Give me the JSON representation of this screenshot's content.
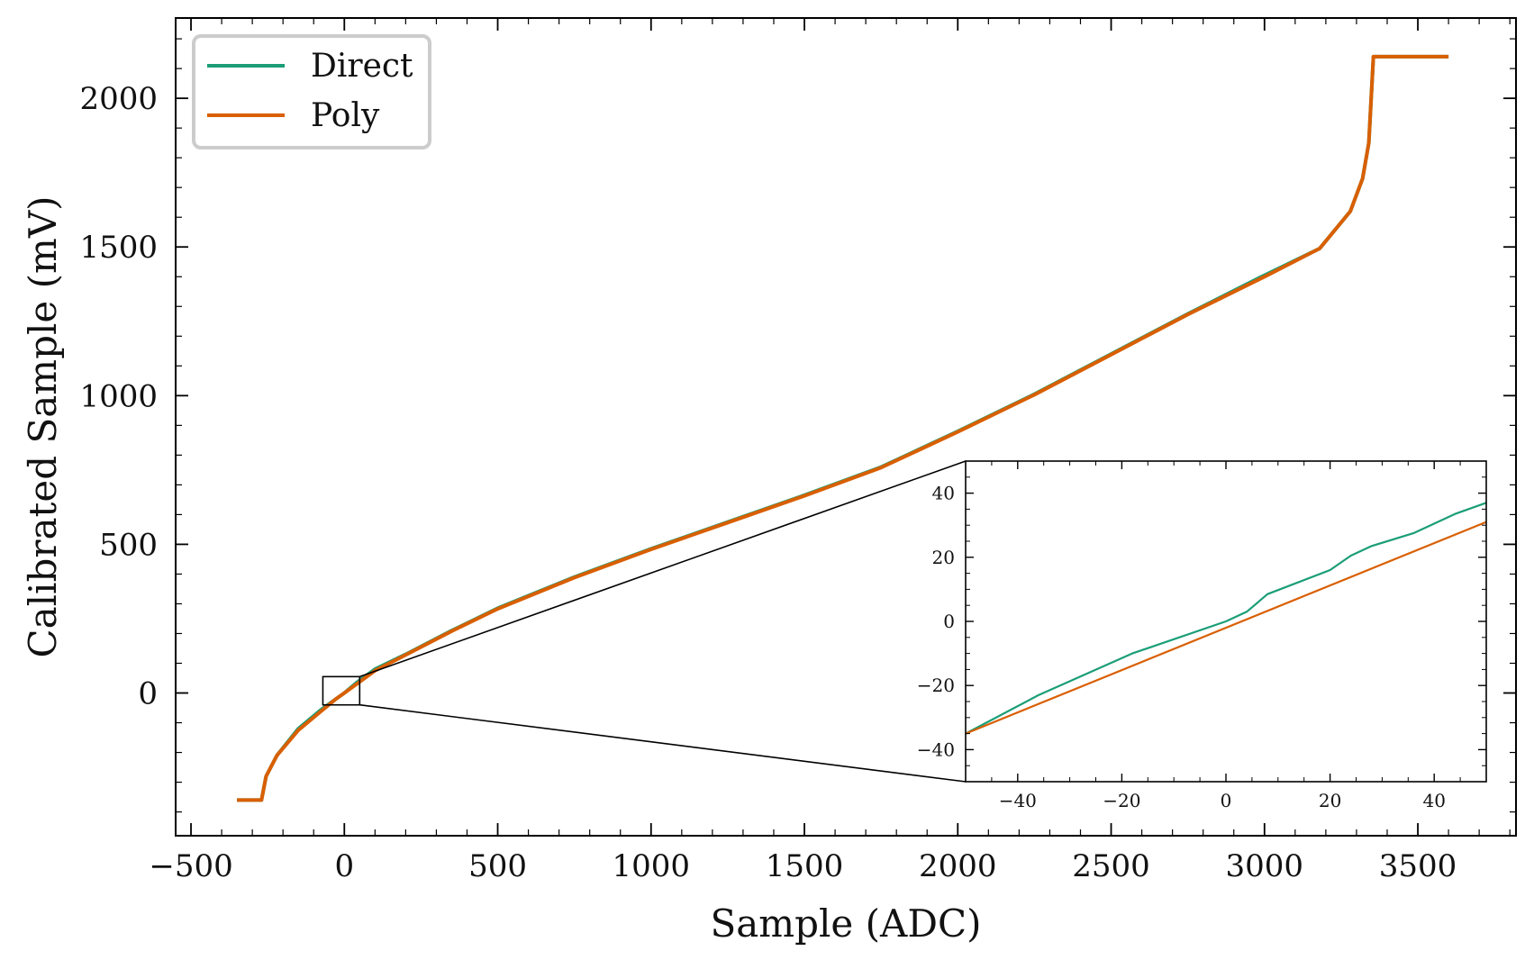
{
  "chart_data": {
    "type": "line",
    "title": "",
    "xlabel": "Sample (ADC)",
    "ylabel": "Calibrated Sample (mV)",
    "xlim": [
      -550,
      3820
    ],
    "ylim": [
      -480,
      2270
    ],
    "xticks": [
      -500,
      0,
      500,
      1000,
      1500,
      2000,
      2500,
      3000,
      3500
    ],
    "xtick_labels": [
      "−500",
      "0",
      "500",
      "1000",
      "1500",
      "2000",
      "2500",
      "3000",
      "3500"
    ],
    "yticks": [
      0,
      500,
      1000,
      1500,
      2000
    ],
    "ytick_labels": [
      "0",
      "500",
      "1000",
      "1500",
      "2000"
    ],
    "legend": {
      "position": "top-left"
    },
    "series": [
      {
        "name": "Direct",
        "color": "#1b9e77",
        "x": [
          -350,
          -270,
          -255,
          -220,
          -150,
          -80,
          -30,
          0,
          40,
          100,
          200,
          350,
          500,
          750,
          1000,
          1250,
          1500,
          1750,
          2000,
          2250,
          2500,
          2750,
          3000,
          3180,
          3280,
          3320,
          3340,
          3355,
          3400,
          3600
        ],
        "y": [
          -360,
          -360,
          -280,
          -210,
          -120,
          -60,
          -22,
          0,
          35,
          80,
          130,
          210,
          285,
          390,
          485,
          575,
          665,
          760,
          880,
          1005,
          1140,
          1275,
          1405,
          1495,
          1620,
          1730,
          1850,
          2140,
          2140,
          2140
        ]
      },
      {
        "name": "Poly",
        "color": "#d95f02",
        "x": [
          -350,
          -270,
          -255,
          -220,
          -150,
          -80,
          -30,
          0,
          40,
          100,
          200,
          350,
          500,
          750,
          1000,
          1250,
          1500,
          1750,
          2000,
          2250,
          2500,
          2750,
          3000,
          3180,
          3280,
          3320,
          3340,
          3355,
          3400,
          3600
        ],
        "y": [
          -360,
          -360,
          -280,
          -210,
          -125,
          -65,
          -22,
          0,
          30,
          75,
          128,
          208,
          283,
          388,
          483,
          573,
          663,
          758,
          878,
          1003,
          1138,
          1273,
          1400,
          1495,
          1620,
          1730,
          1850,
          2140,
          2140,
          2140
        ]
      }
    ],
    "inset": {
      "xlim": [
        -50,
        50
      ],
      "ylim": [
        -50,
        50
      ],
      "xticks": [
        -40,
        -20,
        0,
        20,
        40
      ],
      "xtick_labels": [
        "−40",
        "−20",
        "0",
        "20",
        "40"
      ],
      "yticks": [
        -40,
        -20,
        0,
        20,
        40
      ],
      "ytick_labels": [
        "−40",
        "−20",
        "0",
        "20",
        "40"
      ],
      "zoom_box": {
        "x": [
          -70,
          50
        ],
        "y": [
          -40,
          55
        ]
      },
      "series": [
        {
          "name": "Direct",
          "color": "#1b9e77",
          "x": [
            -50,
            -36,
            -18,
            0,
            4,
            8,
            20,
            24,
            28,
            36,
            44,
            50
          ],
          "y": [
            -35,
            -23,
            -10,
            0,
            3,
            8.5,
            16,
            20.5,
            23.5,
            27.5,
            33.5,
            37
          ]
        },
        {
          "name": "Poly",
          "color": "#d95f02",
          "x": [
            -50,
            50
          ],
          "y": [
            -35,
            31
          ]
        }
      ]
    }
  }
}
